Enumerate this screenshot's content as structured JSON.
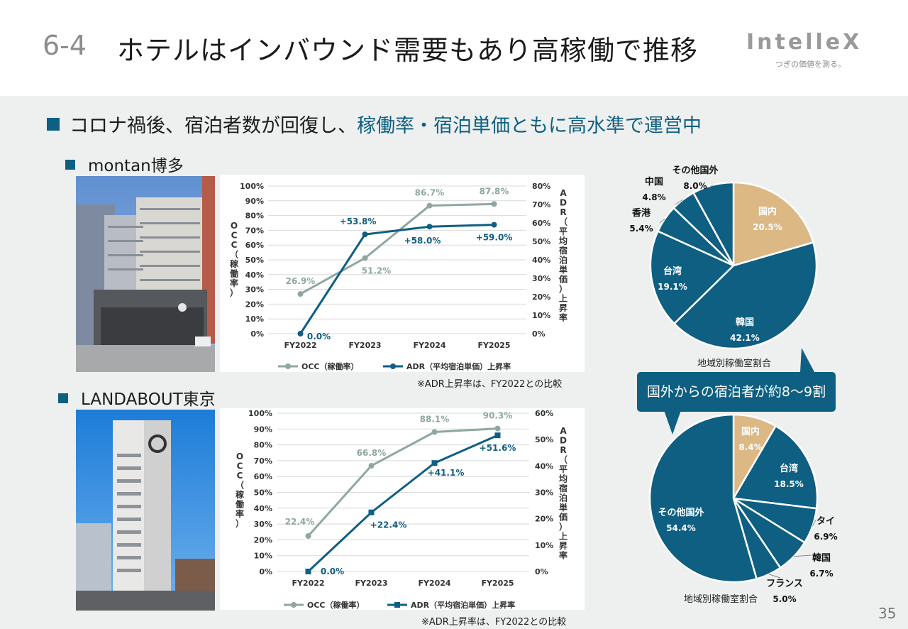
{
  "header": {
    "section_number": "6-4",
    "title": "ホテルはインバウンド需要もあり高稼働で推移",
    "logo": "IntelleX",
    "tagline": "つぎの価値を測る。"
  },
  "lead": {
    "text": "コロナ禍後、宿泊者数が回復し、",
    "highlight": "稼働率・宿泊単価ともに高水準で運営中"
  },
  "hotels": [
    {
      "name": "montan博多",
      "note": "※ADR上昇率は、FY2022との比較"
    },
    {
      "name": "LANDABOUT東京",
      "note": "※ADR上昇率は、FY2022との比較"
    }
  ],
  "callout": "国外からの宿泊者が約8～9割",
  "page_number": "35",
  "colors": {
    "occ": "#8fa89d",
    "adr": "#0e5f82",
    "domestic": "#dcb884",
    "foreign": "#0e5f82",
    "accent": "#0e5f82"
  },
  "chart_data": [
    {
      "type": "line",
      "categories": [
        "FY2022",
        "FY2023",
        "FY2024",
        "FY2025"
      ],
      "y_left_label": "OCC（稼働率）",
      "y_right_label": "ADR（平均宿泊単価）上昇率",
      "y_left_ticks": [
        "0%",
        "10%",
        "20%",
        "30%",
        "40%",
        "50%",
        "60%",
        "70%",
        "80%",
        "90%",
        "100%"
      ],
      "y_right_ticks": [
        "0%",
        "10%",
        "20%",
        "30%",
        "40%",
        "50%",
        "60%",
        "70%",
        "80%"
      ],
      "ylim_left": [
        0,
        100
      ],
      "ylim_right": [
        0,
        80
      ],
      "series": [
        {
          "name": "OCC（稼働率）",
          "axis": "left",
          "marker": "circle",
          "values": [
            26.9,
            51.2,
            86.7,
            87.8
          ],
          "labels": [
            "26.9%",
            "51.2%",
            "86.7%",
            "87.8%"
          ]
        },
        {
          "name": "ADR（平均宿泊単価）上昇率",
          "axis": "right",
          "marker": "circle",
          "values": [
            0.0,
            53.8,
            58.0,
            59.0
          ],
          "labels": [
            "0.0%",
            "+53.8%",
            "+58.0%",
            "+59.0%"
          ]
        }
      ]
    },
    {
      "type": "line",
      "categories": [
        "FY2022",
        "FY2023",
        "FY2024",
        "FY2025"
      ],
      "y_left_label": "OCC（稼働率）",
      "y_right_label": "ADR（平均宿泊単価）上昇率",
      "y_left_ticks": [
        "0%",
        "10%",
        "20%",
        "30%",
        "40%",
        "50%",
        "60%",
        "70%",
        "80%",
        "90%",
        "100%"
      ],
      "y_right_ticks": [
        "0%",
        "10%",
        "20%",
        "30%",
        "40%",
        "50%",
        "60%"
      ],
      "ylim_left": [
        0,
        100
      ],
      "ylim_right": [
        0,
        60
      ],
      "series": [
        {
          "name": "OCC（稼働率）",
          "axis": "left",
          "marker": "circle",
          "values": [
            22.4,
            66.8,
            88.1,
            90.3
          ],
          "labels": [
            "22.4%",
            "66.8%",
            "88.1%",
            "90.3%"
          ]
        },
        {
          "name": "ADR（平均宿泊単価）上昇率",
          "axis": "right",
          "marker": "square",
          "values": [
            0.0,
            22.4,
            41.1,
            51.6
          ],
          "labels": [
            "0.0%",
            "+22.4%",
            "+41.1%",
            "+51.6%"
          ]
        }
      ]
    },
    {
      "type": "pie",
      "caption": "地域別稼働室割合",
      "slices": [
        {
          "label": "国内",
          "value": 20.5,
          "text": "20.5%",
          "domestic": true
        },
        {
          "label": "韓国",
          "value": 42.1,
          "text": "42.1%"
        },
        {
          "label": "台湾",
          "value": 19.1,
          "text": "19.1%"
        },
        {
          "label": "香港",
          "value": 5.4,
          "text": "5.4%"
        },
        {
          "label": "中国",
          "value": 4.8,
          "text": "4.8%"
        },
        {
          "label": "その他国外",
          "value": 8.0,
          "text": "8.0%"
        }
      ]
    },
    {
      "type": "pie",
      "caption": "地域別稼働室割合",
      "slices": [
        {
          "label": "国内",
          "value": 8.4,
          "text": "8.4%",
          "domestic": true
        },
        {
          "label": "台湾",
          "value": 18.5,
          "text": "18.5%"
        },
        {
          "label": "タイ",
          "value": 6.9,
          "text": "6.9%"
        },
        {
          "label": "韓国",
          "value": 6.7,
          "text": "6.7%"
        },
        {
          "label": "フランス",
          "value": 5.0,
          "text": "5.0%"
        },
        {
          "label": "その他国外",
          "value": 54.4,
          "text": "54.4%"
        }
      ]
    }
  ]
}
